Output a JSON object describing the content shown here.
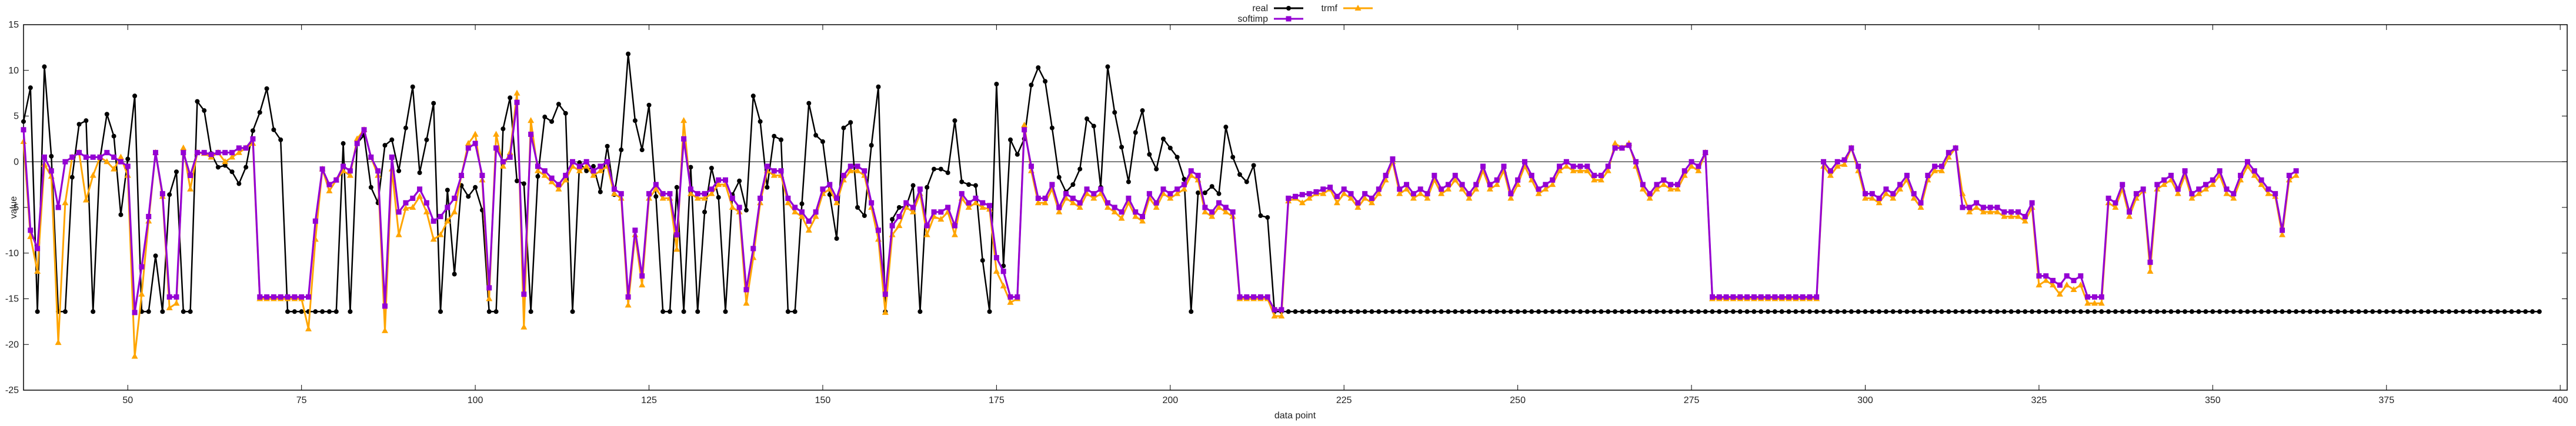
{
  "chart_data": {
    "type": "line",
    "title": "",
    "xlabel": "data point",
    "ylabel": "value",
    "xlim": [
      35,
      401
    ],
    "ylim": [
      -25,
      15
    ],
    "xticks": [
      50,
      75,
      100,
      125,
      150,
      175,
      200,
      225,
      250,
      275,
      300,
      325,
      350,
      375,
      400
    ],
    "yticks": [
      -25,
      -20,
      -15,
      -10,
      -5,
      0,
      5,
      10,
      15
    ],
    "grid": false,
    "zero_line": true,
    "legend_position": "top-center",
    "x_start": 35,
    "series": [
      {
        "name": "real",
        "color": "#000000",
        "marker": "circle",
        "values": [
          4.4,
          8.1,
          -16.4,
          10.4,
          0.6,
          -16.4,
          -16.4,
          -1.7,
          4.1,
          4.5,
          -16.4,
          0.3,
          5.2,
          2.8,
          -5.8,
          0.3,
          7.2,
          -16.4,
          -16.4,
          -10.3,
          -16.4,
          -3.6,
          -1.1,
          -16.4,
          -16.4,
          6.6,
          5.6,
          0.9,
          -0.6,
          -0.4,
          -1.1,
          -2.4,
          -0.6,
          3.4,
          5.4,
          8,
          3.5,
          2.4,
          -16.4,
          -16.4,
          -16.4,
          -16.4,
          -16.4,
          -16.4,
          -16.4,
          -16.4,
          2,
          -16.4,
          2,
          2.9,
          -2.8,
          -4.5,
          1.8,
          2.4,
          -1,
          3.7,
          8.2,
          -1.2,
          2.4,
          6.4,
          -16.4,
          -3.1,
          -12.3,
          -2.6,
          -3.8,
          -2.8,
          -5.3,
          -16.4,
          -16.4,
          3.6,
          7,
          -2.1,
          -2.4,
          -16.4,
          -1.6,
          4.9,
          4.4,
          6.3,
          5.3,
          -16.4,
          -0.1,
          -1,
          -0.5,
          -3.3,
          1.7,
          -3.6,
          1.3,
          11.8,
          4.5,
          1.3,
          6.2,
          -3.8,
          -16.4,
          -16.4,
          -2.8,
          -16.4,
          -0.6,
          -16.4,
          -5.5,
          -0.7,
          -3.9,
          -16.4,
          -3.6,
          -2.1,
          -5.3,
          7.2,
          4.4,
          -2.8,
          2.8,
          2.4,
          -16.4,
          -16.4,
          -4.6,
          6.4,
          2.9,
          2.2,
          -3.6,
          -8.4,
          3.7,
          4.3,
          -5,
          -5.9,
          1.8,
          8.2,
          -16.4,
          -6.3,
          -5,
          -4.9,
          -2.6,
          -16.4,
          -2.8,
          -0.8,
          -0.8,
          -1.2,
          4.5,
          -2.2,
          -2.5,
          -2.6,
          -10.8,
          -16.4,
          8.5,
          -11.4,
          2.4,
          0.8,
          2.5,
          8.4,
          10.3,
          8.8,
          3.7,
          -1.7,
          -3.3,
          -2.5,
          -0.8,
          4.7,
          3.9,
          -2.8,
          10.4,
          5.4,
          1.6,
          -2.2,
          3.2,
          5.6,
          0.8,
          -0.8,
          2.5,
          1.5,
          0.5,
          -1.9,
          -16.4,
          -3.4,
          -3.4,
          -2.7,
          -3.5,
          3.8,
          0.5,
          -1.4,
          -2.2,
          -0.4,
          -5.9,
          -6.1,
          -16.4,
          -16.4,
          -16.4,
          -16.4,
          -16.4,
          -16.4,
          -16.4,
          -16.4,
          -16.4,
          -16.4,
          -16.4,
          -16.4,
          -16.4,
          -16.4,
          -16.4,
          -16.4,
          -16.4,
          -16.4,
          -16.4,
          -16.4,
          -16.4,
          -16.4,
          -16.4,
          -16.4,
          -16.4,
          -16.4,
          -16.4,
          -16.4,
          -16.4,
          -16.4,
          -16.4,
          -16.4,
          -16.4,
          -16.4,
          -16.4,
          -16.4,
          -16.4,
          -16.4,
          -16.4,
          -16.4,
          -16.4,
          -16.4,
          -16.4,
          -16.4,
          -16.4,
          -16.4,
          -16.4,
          -16.4,
          -16.4,
          -16.4,
          -16.4,
          -16.4,
          -16.4,
          -16.4,
          -16.4,
          -16.4,
          -16.4,
          -16.4,
          -16.4,
          -16.4,
          -16.4,
          -16.4,
          -16.4,
          -16.4,
          -16.4,
          -16.4,
          -16.4,
          -16.4,
          -16.4,
          -16.4,
          -16.4,
          -16.4,
          -16.4,
          -16.4,
          -16.4,
          -16.4,
          -16.4,
          -16.4,
          -16.4,
          -16.4,
          -16.4,
          -16.4,
          -16.4,
          -16.4,
          -16.4,
          -16.4,
          -16.4,
          -16.4,
          -16.4,
          -16.4,
          -16.4,
          -16.4,
          -16.4,
          -16.4,
          -16.4,
          -16.4,
          -16.4,
          -16.4,
          -16.4,
          -16.4,
          -16.4,
          -16.4,
          -16.4,
          -16.4,
          -16.4,
          -16.4,
          -16.4,
          -16.4,
          -16.4,
          -16.4,
          -16.4,
          -16.4,
          -16.4,
          -16.4,
          -16.4,
          -16.4,
          -16.4,
          -16.4,
          -16.4,
          -16.4,
          -16.4,
          -16.4,
          -16.4,
          -16.4,
          -16.4,
          -16.4,
          -16.4,
          -16.4,
          -16.4,
          -16.4,
          -16.4,
          -16.4,
          -16.4,
          -16.4,
          -16.4,
          -16.4,
          -16.4,
          -16.4,
          -16.4,
          -16.4,
          -16.4,
          -16.4,
          -16.4,
          -16.4,
          -16.4,
          -16.4,
          -16.4,
          -16.4,
          -16.4,
          -16.4,
          -16.4,
          -16.4,
          -16.4,
          -16.4,
          -16.4,
          -16.4,
          -16.4,
          -16.4,
          -16.4,
          -16.4,
          -16.4,
          -16.4,
          -16.4,
          -16.4,
          -16.4,
          -16.4,
          -16.4,
          -16.4,
          -16.4,
          -16.4,
          -16.4,
          -16.4,
          -16.4,
          -16.4,
          -16.4,
          -16.4,
          -16.4,
          -16.4,
          -16.4,
          -16.4,
          -16.4,
          -16.4,
          -16.4
        ]
      },
      {
        "name": "trmf",
        "color": "#ffa500",
        "marker": "triangle",
        "values": [
          2.2,
          -8.2,
          -12,
          -0.3,
          -1.6,
          -19.8,
          -4.5,
          0.5,
          1,
          -4.2,
          -1.5,
          0.5,
          0,
          -0.8,
          0.5,
          -1.5,
          -21.3,
          -14.5,
          -6.5,
          1,
          -3.8,
          -16,
          -15.5,
          1.5,
          -3,
          1,
          0.9,
          0.5,
          1,
          0,
          0.5,
          1,
          1.5,
          2,
          -15,
          -15,
          -15,
          -15,
          -15,
          -15,
          -15,
          -18.3,
          -8.5,
          -0.8,
          -3.2,
          -2,
          -1,
          -1.5,
          2.5,
          3.5,
          0.5,
          -1.5,
          -18.5,
          -0.8,
          -8,
          -5.1,
          -5,
          -3.8,
          -5.5,
          -8.5,
          -8,
          -6.5,
          -5.5,
          -1.5,
          2,
          3,
          -2,
          -15,
          3,
          -0.5,
          1,
          7.5,
          -18.1,
          4.5,
          -1,
          -1.5,
          -2.2,
          -3,
          -2,
          -0.5,
          -1,
          -0.5,
          -1.5,
          -1,
          -0.5,
          -3.5,
          -4,
          -15.7,
          -8,
          -13.5,
          -4,
          -3,
          -4,
          -4,
          -9.6,
          4.5,
          -3.5,
          -4,
          -4,
          -3.5,
          -2.5,
          -2.5,
          -5,
          -5.5,
          -15.5,
          -10.5,
          -4.5,
          -1,
          -1.5,
          -1.5,
          -4.5,
          -5.5,
          -6,
          -7.5,
          -6,
          -3.5,
          -3,
          -4.5,
          -2,
          -1,
          -1,
          -1.5,
          -5,
          -8.5,
          -16.5,
          -8,
          -7,
          -5,
          -5.5,
          -3.5,
          -8,
          -6,
          -6.3,
          -5.5,
          -8,
          -4,
          -5,
          -4.5,
          -5,
          -5.2,
          -12,
          -13.6,
          -15.4,
          -15,
          4,
          -1,
          -4.5,
          -4.5,
          -3,
          -5.5,
          -4,
          -4.5,
          -5,
          -3.5,
          -4,
          -3.5,
          -5,
          -5.5,
          -6.2,
          -4.5,
          -6,
          -6.5,
          -4,
          -5,
          -3.5,
          -4,
          -3.5,
          -3,
          -1.5,
          -2,
          -5.5,
          -6,
          -5,
          -5.5,
          -6,
          -15,
          -15,
          -15,
          -15,
          -15,
          -16.9,
          -16.9,
          -4.3,
          -4,
          -4.5,
          -4,
          -3.5,
          -3.5,
          -3,
          -4.5,
          -3.5,
          -4,
          -5,
          -4,
          -4.5,
          -3.5,
          -2,
          0,
          -3.5,
          -3,
          -4,
          -3.5,
          -4,
          -2,
          -3.5,
          -3,
          -2,
          -3,
          -4,
          -3,
          -1,
          -3,
          -2.5,
          -1,
          -4,
          -2.5,
          -0.5,
          -2,
          -3.5,
          -3,
          -2.5,
          -1,
          -0.5,
          -1,
          -1,
          -1,
          -2,
          -2,
          -1,
          2,
          1.5,
          2,
          -0.5,
          -3,
          -4,
          -3,
          -2.5,
          -3,
          -3,
          -1.5,
          -0.5,
          -1,
          1,
          -15,
          -15,
          -15,
          -15,
          -15,
          -15,
          -15,
          -15,
          -15,
          -15,
          -15,
          -15,
          -15,
          -15,
          -15,
          -15,
          -0.5,
          -1.5,
          -0.5,
          -0.3,
          1.5,
          -1,
          -4,
          -4,
          -4.5,
          -3.5,
          -4,
          -3,
          -2,
          -4,
          -5,
          -2,
          -1,
          -1,
          0.5,
          1.5,
          -3.5,
          -5.5,
          -5,
          -5.5,
          -5.5,
          -5.5,
          -6,
          -6,
          -6,
          -6.5,
          -5,
          -13.5,
          -13,
          -13.5,
          -14.5,
          -13.5,
          -14,
          -13.5,
          -15.5,
          -15.5,
          -15.5,
          -4.5,
          -5,
          -3,
          -6,
          -4,
          -3.2,
          -12,
          -3,
          -2.5,
          -2,
          -3.5,
          -1.5,
          -4,
          -3.5,
          -3,
          -2.5,
          -1.5,
          -3.5,
          -4,
          -2,
          -0.5,
          -1.5,
          -2.5,
          -3.5,
          -3.8,
          -8,
          -2,
          -1.5
        ]
      },
      {
        "name": "softimp",
        "color": "#9400d3",
        "marker": "square",
        "values": [
          3.5,
          -7.5,
          -9.5,
          0.5,
          -1,
          -5,
          0,
          0.5,
          1,
          0.5,
          0.5,
          0.5,
          1,
          0.5,
          0,
          -0.5,
          -16.5,
          -11.5,
          -6,
          1,
          -3.5,
          -14.8,
          -14.8,
          1,
          -1.5,
          1,
          1,
          0.8,
          1,
          1,
          1,
          1.5,
          1.5,
          2.5,
          -14.8,
          -14.8,
          -14.8,
          -14.8,
          -14.8,
          -14.8,
          -14.8,
          -14.8,
          -6.5,
          -0.8,
          -2.5,
          -2,
          -0.5,
          -1,
          2,
          3.5,
          0.5,
          -1,
          -15.8,
          0.5,
          -5.5,
          -4.5,
          -4,
          -3,
          -4.5,
          -6.5,
          -6,
          -5,
          -4,
          -1.5,
          1.5,
          2,
          -1.5,
          -13.8,
          1.5,
          0,
          0.5,
          6.5,
          -14.5,
          3,
          -0.5,
          -1,
          -1.8,
          -2.5,
          -1.5,
          0,
          -0.5,
          0,
          -1,
          -0.5,
          0,
          -3,
          -3.5,
          -14.8,
          -7.5,
          -12.5,
          -3.5,
          -2.5,
          -3.5,
          -3.5,
          -8,
          2.5,
          -3,
          -3.5,
          -3.5,
          -3,
          -2,
          -2,
          -4,
          -5,
          -14,
          -9.5,
          -4,
          -0.5,
          -1,
          -1,
          -4,
          -5,
          -5.5,
          -6.5,
          -5.5,
          -3,
          -2.5,
          -4,
          -1.5,
          -0.5,
          -0.5,
          -1,
          -4.5,
          -7.5,
          -14.5,
          -7,
          -6,
          -4.5,
          -5,
          -3,
          -7,
          -5.5,
          -5.5,
          -5,
          -7,
          -3.5,
          -4.5,
          -4,
          -4.5,
          -4.8,
          -10.5,
          -12,
          -14.8,
          -14.8,
          3.5,
          -0.5,
          -4,
          -4,
          -2.5,
          -5,
          -3.5,
          -4,
          -4.5,
          -3,
          -3.5,
          -3,
          -4.5,
          -5,
          -5.5,
          -4,
          -5.5,
          -6,
          -3.5,
          -4.5,
          -3,
          -3.5,
          -3,
          -2.5,
          -1,
          -1.5,
          -5,
          -5.5,
          -4.5,
          -5,
          -5.5,
          -14.8,
          -14.8,
          -14.8,
          -14.8,
          -14.8,
          -16.2,
          -16.2,
          -4,
          -3.8,
          -3.6,
          -3.5,
          -3.3,
          -3,
          -2.8,
          -3.8,
          -3,
          -3.5,
          -4.5,
          -3.5,
          -4,
          -3,
          -1.5,
          0.3,
          -3,
          -2.5,
          -3.5,
          -3,
          -3.5,
          -1.5,
          -3,
          -2.5,
          -1.5,
          -2.5,
          -3.5,
          -2.5,
          -0.5,
          -2.5,
          -2,
          -0.5,
          -3.5,
          -2,
          0,
          -1.5,
          -3,
          -2.5,
          -2,
          -0.5,
          0,
          -0.5,
          -0.5,
          -0.5,
          -1.5,
          -1.5,
          -0.5,
          1.5,
          1.5,
          1.8,
          0,
          -2.5,
          -3.5,
          -2.5,
          -2,
          -2.5,
          -2.5,
          -1,
          0,
          -0.5,
          1,
          -14.8,
          -14.8,
          -14.8,
          -14.8,
          -14.8,
          -14.8,
          -14.8,
          -14.8,
          -14.8,
          -14.8,
          -14.8,
          -14.8,
          -14.8,
          -14.8,
          -14.8,
          -14.8,
          0,
          -1,
          0,
          0.2,
          1.5,
          -0.5,
          -3.5,
          -3.5,
          -4,
          -3,
          -3.5,
          -2.5,
          -1.5,
          -3.5,
          -4.5,
          -1.5,
          -0.5,
          -0.5,
          1,
          1.5,
          -5,
          -5,
          -4.5,
          -5,
          -5,
          -5,
          -5.5,
          -5.5,
          -5.5,
          -6,
          -4.5,
          -12.5,
          -12.5,
          -13,
          -13.5,
          -12.5,
          -13,
          -12.5,
          -14.8,
          -14.8,
          -14.8,
          -4,
          -4.5,
          -2.5,
          -5.5,
          -3.5,
          -3,
          -11,
          -2.5,
          -2,
          -1.5,
          -3,
          -1,
          -3.5,
          -3,
          -2.5,
          -2,
          -1,
          -3,
          -3.5,
          -1.5,
          0,
          -1,
          -2,
          -3,
          -3.5,
          -7.5,
          -1.5,
          -1
        ]
      }
    ]
  }
}
